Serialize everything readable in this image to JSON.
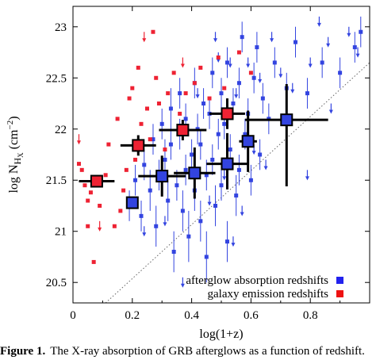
{
  "chart_data": {
    "type": "scatter",
    "xlabel": "log(1+z)",
    "ylabel": "log N",
    "ylabel_subscript": "H",
    "ylabel_subsubscript": "X",
    "ylabel_unit": " (cm",
    "ylabel_unit_sup": "−2",
    "ylabel_unit_close": ")",
    "xlim": [
      0,
      1.0
    ],
    "ylim": [
      20.3,
      23.2
    ],
    "xticks": [
      0,
      0.2,
      0.4,
      0.6,
      0.8
    ],
    "xtick_labels": [
      "0",
      "0.2",
      "0.4",
      "0.6",
      "0.8"
    ],
    "yticks": [
      20.5,
      21,
      21.5,
      22,
      22.5,
      23
    ],
    "ytick_labels": [
      "20.5",
      "21",
      "21.5",
      "22",
      "22.5",
      "23"
    ],
    "colors": {
      "afterglow": "#3344e0",
      "galaxy": "#ee2233",
      "bigEdge": "#000000"
    },
    "legend": {
      "position": "bottom-right",
      "entries": [
        {
          "label": "afterglow absorption redshifts",
          "color": "#2222ee"
        },
        {
          "label": "galaxy emission redshifts",
          "color": "#ee1111"
        }
      ]
    },
    "reference_line": {
      "style": "dotted",
      "points": [
        [
          0.11,
          20.3
        ],
        [
          1.0,
          22.65
        ]
      ]
    },
    "series": [
      {
        "key": "afterglow",
        "points": [
          [
            0.19,
            21.25,
            21.1,
            21.4
          ],
          [
            0.21,
            21.5,
            21.35,
            21.65
          ],
          [
            0.23,
            21.15,
            21.0,
            21.3
          ],
          [
            0.24,
            21.65,
            21.5,
            21.8
          ],
          [
            0.26,
            21.4,
            21.2,
            21.6
          ],
          [
            0.27,
            21.9,
            21.75,
            22.05
          ],
          [
            0.28,
            21.05,
            20.85,
            21.25
          ],
          [
            0.29,
            21.55,
            21.4,
            21.7
          ],
          [
            0.3,
            22.05,
            21.9,
            22.2
          ],
          [
            0.31,
            21.7,
            21.5,
            21.9
          ],
          [
            0.32,
            21.3,
            21.1,
            21.5
          ],
          [
            0.33,
            22.2,
            22.0,
            22.4
          ],
          [
            0.33,
            21.85,
            21.7,
            22.0
          ],
          [
            0.34,
            20.8,
            20.6,
            21.0
          ],
          [
            0.35,
            21.45,
            21.3,
            21.6
          ],
          [
            0.36,
            22.35,
            22.2,
            22.5
          ],
          [
            0.36,
            21.95,
            21.8,
            22.1
          ],
          [
            0.37,
            21.2,
            21.0,
            21.4
          ],
          [
            0.38,
            21.6,
            21.45,
            21.75
          ],
          [
            0.38,
            22.1,
            21.95,
            22.25
          ],
          [
            0.39,
            20.95,
            20.7,
            21.2
          ],
          [
            0.4,
            21.75,
            21.6,
            21.9
          ],
          [
            0.41,
            22.45,
            22.3,
            22.6
          ],
          [
            0.41,
            21.4,
            21.2,
            21.6
          ],
          [
            0.42,
            22.0,
            21.85,
            22.15
          ],
          [
            0.43,
            21.1,
            20.9,
            21.3
          ],
          [
            0.43,
            21.85,
            21.7,
            22.0
          ],
          [
            0.44,
            22.25,
            22.1,
            22.4
          ],
          [
            0.45,
            21.55,
            21.4,
            21.7
          ],
          [
            0.45,
            20.75,
            20.5,
            21.0
          ],
          [
            0.46,
            22.15,
            22.0,
            22.3
          ],
          [
            0.47,
            21.7,
            21.55,
            21.85
          ],
          [
            0.47,
            22.55,
            22.4,
            22.7
          ],
          [
            0.48,
            21.25,
            21.05,
            21.45
          ],
          [
            0.49,
            21.95,
            21.8,
            22.1
          ],
          [
            0.5,
            22.35,
            22.2,
            22.5
          ],
          [
            0.5,
            21.45,
            21.3,
            21.6
          ],
          [
            0.51,
            22.05,
            21.9,
            22.2
          ],
          [
            0.52,
            20.9,
            20.7,
            21.1
          ],
          [
            0.52,
            22.65,
            22.5,
            22.8
          ],
          [
            0.53,
            21.8,
            21.65,
            21.95
          ],
          [
            0.54,
            22.25,
            22.1,
            22.4
          ],
          [
            0.55,
            21.35,
            21.15,
            21.55
          ],
          [
            0.56,
            22.45,
            22.3,
            22.6
          ],
          [
            0.56,
            21.6,
            21.45,
            21.75
          ],
          [
            0.57,
            22.9,
            22.75,
            23.05
          ],
          [
            0.58,
            21.95,
            21.8,
            22.1
          ],
          [
            0.59,
            22.15,
            22.0,
            22.3
          ],
          [
            0.6,
            21.5,
            21.35,
            21.65
          ],
          [
            0.61,
            22.5,
            22.35,
            22.65
          ],
          [
            0.62,
            22.8,
            22.65,
            22.95
          ],
          [
            0.63,
            21.75,
            21.6,
            21.9
          ],
          [
            0.64,
            22.3,
            22.15,
            22.45
          ],
          [
            0.66,
            22.1,
            21.95,
            22.25
          ],
          [
            0.68,
            22.65,
            22.5,
            22.8
          ],
          [
            0.72,
            22.4,
            22.25,
            22.55
          ],
          [
            0.75,
            22.85,
            22.7,
            23.0
          ],
          [
            0.79,
            22.35,
            22.2,
            22.5
          ],
          [
            0.84,
            22.65,
            22.5,
            22.8
          ],
          [
            0.9,
            22.55,
            22.4,
            22.7
          ],
          [
            0.95,
            22.8,
            22.65,
            22.95
          ],
          [
            0.97,
            22.95,
            22.8,
            23.1
          ]
        ],
        "upper_limits": [
          [
            0.24,
            21.05
          ],
          [
            0.31,
            21.15
          ],
          [
            0.37,
            20.55
          ],
          [
            0.42,
            22.4
          ],
          [
            0.46,
            21.35
          ],
          [
            0.48,
            22.95
          ],
          [
            0.49,
            22.75
          ],
          [
            0.51,
            21.6
          ],
          [
            0.53,
            22.7
          ],
          [
            0.54,
            20.95
          ],
          [
            0.55,
            22.4
          ],
          [
            0.57,
            21.25
          ],
          [
            0.59,
            22.7
          ],
          [
            0.61,
            21.85
          ],
          [
            0.63,
            22.55
          ],
          [
            0.65,
            21.7
          ],
          [
            0.67,
            22.95
          ],
          [
            0.7,
            22.6
          ],
          [
            0.74,
            22.45
          ],
          [
            0.79,
            21.6
          ],
          [
            0.8,
            22.7
          ],
          [
            0.83,
            23.1
          ],
          [
            0.86,
            22.9
          ],
          [
            0.87,
            22.25
          ],
          [
            0.93,
            23.0
          ],
          [
            0.96,
            22.8
          ]
        ]
      },
      {
        "key": "galaxy",
        "points": [
          [
            0.02,
            21.66
          ],
          [
            0.03,
            21.6
          ],
          [
            0.04,
            21.45
          ],
          [
            0.05,
            21.3
          ],
          [
            0.06,
            21.38
          ],
          [
            0.05,
            21.05
          ],
          [
            0.07,
            20.7
          ],
          [
            0.09,
            21.25
          ],
          [
            0.11,
            21.55
          ],
          [
            0.12,
            21.85
          ],
          [
            0.14,
            21.05
          ],
          [
            0.15,
            22.1
          ],
          [
            0.16,
            21.2
          ],
          [
            0.17,
            21.4
          ],
          [
            0.18,
            21.6
          ],
          [
            0.19,
            22.3
          ],
          [
            0.2,
            22.4
          ],
          [
            0.21,
            21.7
          ],
          [
            0.22,
            22.6
          ],
          [
            0.23,
            22.05
          ],
          [
            0.25,
            22.2
          ],
          [
            0.26,
            21.9
          ],
          [
            0.27,
            22.95
          ],
          [
            0.28,
            22.5
          ],
          [
            0.29,
            22.25
          ],
          [
            0.31,
            21.8
          ],
          [
            0.32,
            22.35
          ],
          [
            0.34,
            22.55
          ],
          [
            0.36,
            22.15
          ],
          [
            0.38,
            22.35
          ],
          [
            0.41,
            22.45
          ],
          [
            0.43,
            22.6
          ],
          [
            0.46,
            22.3
          ],
          [
            0.49,
            22.7
          ],
          [
            0.51,
            22.4
          ],
          [
            0.56,
            22.75
          ],
          [
            0.6,
            22.55
          ]
        ],
        "upper_limits": [
          [
            0.02,
            21.95
          ],
          [
            0.09,
            21.1
          ],
          [
            0.24,
            22.95
          ],
          [
            0.37,
            22.7
          ]
        ]
      },
      {
        "key": "average",
        "points": [
          [
            0.08,
            21.49,
            0.06,
            0.06,
            0.06,
            0.06,
            "galaxy"
          ],
          [
            0.2,
            21.28,
            0.02,
            0.02,
            0.05,
            0.05,
            "afterglow"
          ],
          [
            0.22,
            21.84,
            0.06,
            0.06,
            0.1,
            0.1,
            "galaxy"
          ],
          [
            0.3,
            21.54,
            0.08,
            0.08,
            0.2,
            0.2,
            "afterglow"
          ],
          [
            0.37,
            21.99,
            0.08,
            0.08,
            0.1,
            0.1,
            "galaxy"
          ],
          [
            0.41,
            21.57,
            0.07,
            0.07,
            0.25,
            0.25,
            "afterglow"
          ],
          [
            0.52,
            22.15,
            0.06,
            0.06,
            0.15,
            0.15,
            "galaxy"
          ],
          [
            0.52,
            21.66,
            0.07,
            0.07,
            0.25,
            0.3,
            "afterglow"
          ],
          [
            0.59,
            21.88,
            0.03,
            0.03,
            0.3,
            0.3,
            "afterglow"
          ],
          [
            0.72,
            22.09,
            0.14,
            0.14,
            0.65,
            0.35,
            "afterglow"
          ]
        ]
      }
    ]
  },
  "caption": {
    "label": "Figure 1.",
    "text": "The X-ray absorption of GRB afterglows as a function of redshift."
  }
}
